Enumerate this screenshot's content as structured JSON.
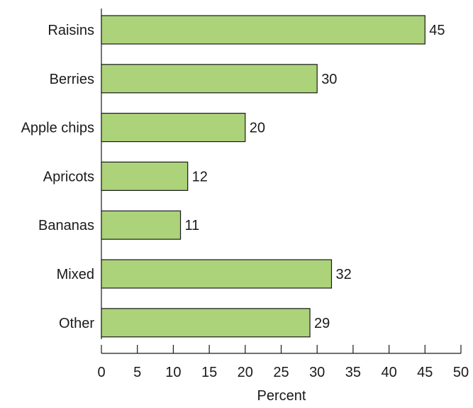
{
  "chart_data": {
    "type": "bar",
    "orientation": "horizontal",
    "categories": [
      "Raisins",
      "Berries",
      "Apple chips",
      "Apricots",
      "Bananas",
      "Mixed",
      "Other"
    ],
    "values": [
      45,
      30,
      20,
      12,
      11,
      32,
      29
    ],
    "data_labels": [
      "45",
      "30",
      "20",
      "12",
      "11",
      "32",
      "29"
    ],
    "title": "",
    "xlabel": "Percent",
    "ylabel": "",
    "xlim": [
      0,
      50
    ],
    "x_ticks": [
      "0",
      "5",
      "10",
      "15",
      "20",
      "25",
      "30",
      "35",
      "40",
      "45",
      "50"
    ],
    "grid": false,
    "legend": "none",
    "bar_color": "#acd27a",
    "bar_edge_color": "#1a1a1a"
  }
}
